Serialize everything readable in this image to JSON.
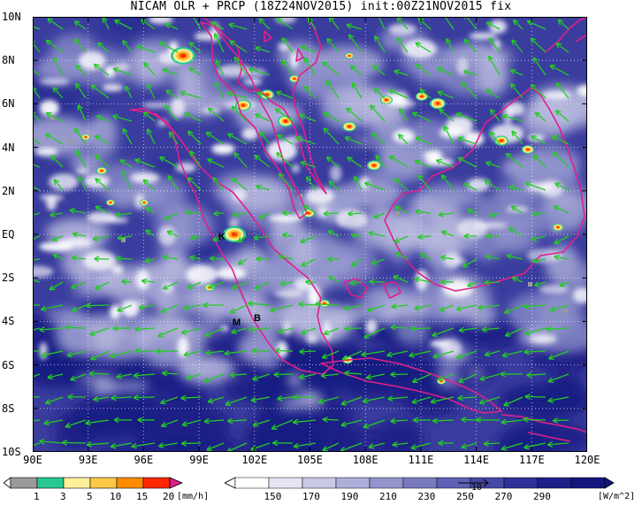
{
  "title": "NICAM OLR + PRCP (18Z24NOV2015) init:00Z21NOV2015 fix",
  "map": {
    "lat_ticks": [
      "10N",
      "8N",
      "6N",
      "4N",
      "2N",
      "EQ",
      "2S",
      "4S",
      "6S",
      "8S",
      "10S"
    ],
    "lon_ticks": [
      "90E",
      "93E",
      "96E",
      "99E",
      "102E",
      "105E",
      "108E",
      "111E",
      "114E",
      "117E",
      "120E"
    ],
    "lat_range": [
      -10,
      10
    ],
    "lon_range": [
      90,
      120
    ],
    "places": [
      "K",
      "M",
      "B"
    ],
    "colors": {
      "olr_bright": "#ffffff",
      "olr_dark": "#14167e",
      "coastline": "#e0208a",
      "wind_vector": "#22cc22"
    }
  },
  "precip_colorbar": {
    "labels": [
      "1",
      "3",
      "5",
      "10",
      "15",
      "20"
    ],
    "unit": "[mm/h]",
    "colors": [
      "#9a9a9a",
      "#28c890",
      "#fff09a",
      "#ffc848",
      "#ff8c00",
      "#ff2800"
    ],
    "end_color": "#e0208a"
  },
  "olr_colorbar": {
    "labels": [
      "150",
      "170",
      "190",
      "210",
      "230",
      "250",
      "270",
      "290"
    ],
    "unit": "[W/m^2]",
    "reference_vector": "10",
    "colors": [
      "#ffffff",
      "#e4e4f2",
      "#c9c9e6",
      "#aeaeda",
      "#9494cc",
      "#7a7abf",
      "#5e60b3",
      "#4648a6",
      "#2d3098",
      "#1c2088",
      "#14167e"
    ],
    "end_color": "#14167e"
  }
}
